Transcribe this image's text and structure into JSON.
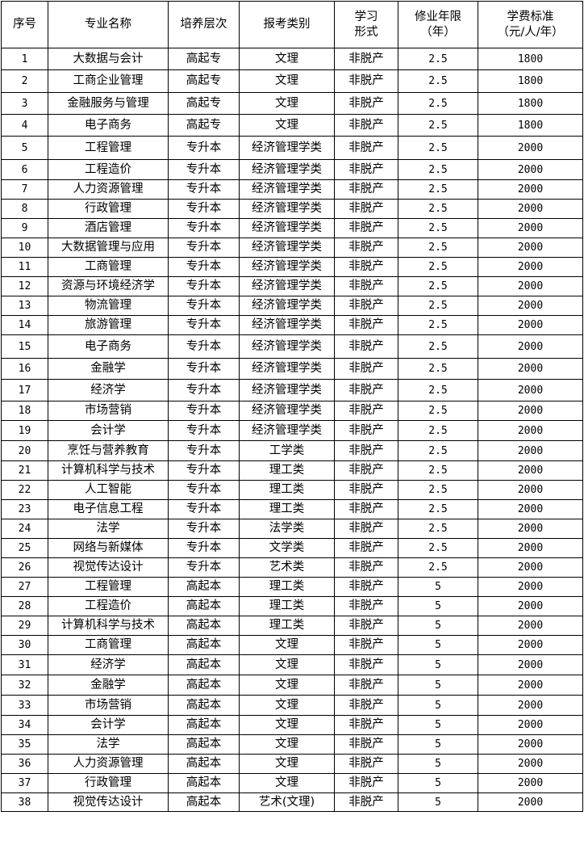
{
  "table": {
    "headers": [
      [
        "序号"
      ],
      [
        "专业名称"
      ],
      [
        "培养层次"
      ],
      [
        "报考类别"
      ],
      [
        "学习",
        "形式"
      ],
      [
        "修业年限",
        "（年）"
      ],
      [
        "学费标准",
        "（元/人/年）"
      ]
    ],
    "rows": [
      [
        "1",
        "大数据与会计",
        "高起专",
        "文理",
        "非脱产",
        "2.5",
        "1800"
      ],
      [
        "2",
        "工商企业管理",
        "高起专",
        "文理",
        "非脱产",
        "2.5",
        "1800"
      ],
      [
        "3",
        "金融服务与管理",
        "高起专",
        "文理",
        "非脱产",
        "2.5",
        "1800"
      ],
      [
        "4",
        "电子商务",
        "高起专",
        "文理",
        "非脱产",
        "2.5",
        "1800"
      ],
      [
        "5",
        "工程管理",
        "专升本",
        "经济管理学类",
        "非脱产",
        "2.5",
        "2000"
      ],
      [
        "6",
        "工程造价",
        "专升本",
        "经济管理学类",
        "非脱产",
        "2.5",
        "2000"
      ],
      [
        "7",
        "人力资源管理",
        "专升本",
        "经济管理学类",
        "非脱产",
        "2.5",
        "2000"
      ],
      [
        "8",
        "行政管理",
        "专升本",
        "经济管理学类",
        "非脱产",
        "2.5",
        "2000"
      ],
      [
        "9",
        "酒店管理",
        "专升本",
        "经济管理学类",
        "非脱产",
        "2.5",
        "2000"
      ],
      [
        "10",
        "大数据管理与应用",
        "专升本",
        "经济管理学类",
        "非脱产",
        "2.5",
        "2000"
      ],
      [
        "11",
        "工商管理",
        "专升本",
        "经济管理学类",
        "非脱产",
        "2.5",
        "2000"
      ],
      [
        "12",
        "资源与环境经济学",
        "专升本",
        "经济管理学类",
        "非脱产",
        "2.5",
        "2000"
      ],
      [
        "13",
        "物流管理",
        "专升本",
        "经济管理学类",
        "非脱产",
        "2.5",
        "2000"
      ],
      [
        "14",
        "旅游管理",
        "专升本",
        "经济管理学类",
        "非脱产",
        "2.5",
        "2000"
      ],
      [
        "15",
        "电子商务",
        "专升本",
        "经济管理学类",
        "非脱产",
        "2.5",
        "2000"
      ],
      [
        "16",
        "金融学",
        "专升本",
        "经济管理学类",
        "非脱产",
        "2.5",
        "2000"
      ],
      [
        "17",
        "经济学",
        "专升本",
        "经济管理学类",
        "非脱产",
        "2.5",
        "2000"
      ],
      [
        "18",
        "市场营销",
        "专升本",
        "经济管理学类",
        "非脱产",
        "2.5",
        "2000"
      ],
      [
        "19",
        "会计学",
        "专升本",
        "经济管理学类",
        "非脱产",
        "2.5",
        "2000"
      ],
      [
        "20",
        "烹饪与营养教育",
        "专升本",
        "工学类",
        "非脱产",
        "2.5",
        "2000"
      ],
      [
        "21",
        "计算机科学与技术",
        "专升本",
        "理工类",
        "非脱产",
        "2.5",
        "2000"
      ],
      [
        "22",
        "人工智能",
        "专升本",
        "理工类",
        "非脱产",
        "2.5",
        "2000"
      ],
      [
        "23",
        "电子信息工程",
        "专升本",
        "理工类",
        "非脱产",
        "2.5",
        "2000"
      ],
      [
        "24",
        "法学",
        "专升本",
        "法学类",
        "非脱产",
        "2.5",
        "2000"
      ],
      [
        "25",
        "网络与新媒体",
        "专升本",
        "文学类",
        "非脱产",
        "2.5",
        "2000"
      ],
      [
        "26",
        "视觉传达设计",
        "专升本",
        "艺术类",
        "非脱产",
        "2.5",
        "2000"
      ],
      [
        "27",
        "工程管理",
        "高起本",
        "理工类",
        "非脱产",
        "5",
        "2000"
      ],
      [
        "28",
        "工程造价",
        "高起本",
        "理工类",
        "非脱产",
        "5",
        "2000"
      ],
      [
        "29",
        "计算机科学与技术",
        "高起本",
        "理工类",
        "非脱产",
        "5",
        "2000"
      ],
      [
        "30",
        "工商管理",
        "高起本",
        "文理",
        "非脱产",
        "5",
        "2000"
      ],
      [
        "31",
        "经济学",
        "高起本",
        "文理",
        "非脱产",
        "5",
        "2000"
      ],
      [
        "32",
        "金融学",
        "高起本",
        "文理",
        "非脱产",
        "5",
        "2000"
      ],
      [
        "33",
        "市场营销",
        "高起本",
        "文理",
        "非脱产",
        "5",
        "2000"
      ],
      [
        "34",
        "会计学",
        "高起本",
        "文理",
        "非脱产",
        "5",
        "2000"
      ],
      [
        "35",
        "法学",
        "高起本",
        "文理",
        "非脱产",
        "5",
        "2000"
      ],
      [
        "36",
        "人力资源管理",
        "高起本",
        "文理",
        "非脱产",
        "5",
        "2000"
      ],
      [
        "37",
        "行政管理",
        "高起本",
        "文理",
        "非脱产",
        "5",
        "2000"
      ],
      [
        "38",
        "视觉传达设计",
        "高起本",
        "艺术(文理)",
        "非脱产",
        "5",
        "2000"
      ]
    ]
  }
}
